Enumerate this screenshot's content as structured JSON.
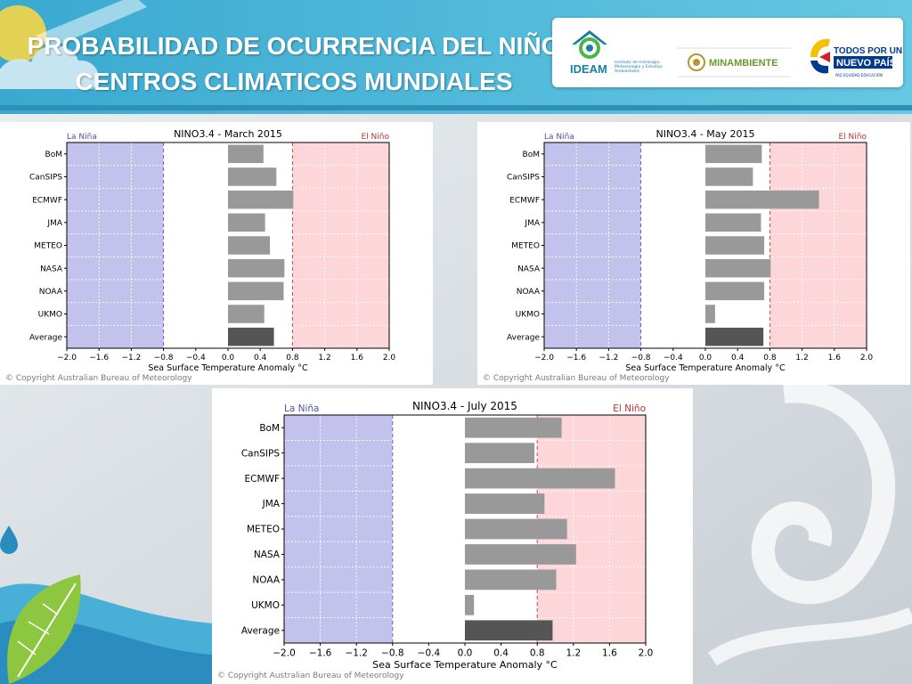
{
  "slide": {
    "title_line1": "PROBABILIDAD DE OCURRENCIA DEL NIÑO",
    "title_line2": "CENTROS CLIMATICOS MUNDIALES"
  },
  "logos": {
    "ideam_name": "IDEAM",
    "ideam_subtitle": "Instituto de Hidrología, Meteorología y Estudios Ambientales",
    "minambiente": "MINAMBIENTE",
    "todos_line1": "TODOS POR UN",
    "todos_line2": "NUEVO PAÍS",
    "todos_motto": "PAZ  EQUIDAD  EDUCACIÓN"
  },
  "colors": {
    "la_nina_fill": "#c2c2ec",
    "el_nino_fill": "#fdd6da",
    "bar": "#999999",
    "average_bar": "#555555",
    "la_nina_text": "#5050a8",
    "el_nino_text": "#c23030",
    "title_bg": "#4bb8d6",
    "accent_green": "#8dc63f"
  },
  "copyright": "© Copyright Australian Bureau of Meteorology",
  "chart_data": [
    {
      "type": "bar",
      "orientation": "horizontal",
      "title": "NINO3.4 - March 2015",
      "xlabel": "Sea Surface Temperature Anomaly °C",
      "ylabel": "",
      "categories": [
        "BoM",
        "CanSIPS",
        "ECMWF",
        "JMA",
        "METEO",
        "NASA",
        "NOAA",
        "UKMO",
        "Average"
      ],
      "values": [
        0.44,
        0.6,
        0.81,
        0.46,
        0.52,
        0.7,
        0.69,
        0.45,
        0.57
      ],
      "xlim": [
        -2.0,
        2.0
      ],
      "xticks": [
        "−2.0",
        "−1.6",
        "−1.2",
        "−0.8",
        "−0.4",
        "0.0",
        "0.4",
        "0.8",
        "1.2",
        "1.6",
        "2.0"
      ],
      "thresholds": [
        -0.8,
        0.8
      ],
      "region_labels": [
        "La Niña",
        "El Niño"
      ],
      "grid": true
    },
    {
      "type": "bar",
      "orientation": "horizontal",
      "title": "NINO3.4 - May 2015",
      "xlabel": "Sea Surface Temperature Anomaly °C",
      "ylabel": "",
      "categories": [
        "BoM",
        "CanSIPS",
        "ECMWF",
        "JMA",
        "METEO",
        "NASA",
        "NOAA",
        "UKMO",
        "Average"
      ],
      "values": [
        0.7,
        0.59,
        1.41,
        0.69,
        0.73,
        0.81,
        0.73,
        0.12,
        0.72
      ],
      "xlim": [
        -2.0,
        2.0
      ],
      "xticks": [
        "−2.0",
        "−1.6",
        "−1.2",
        "−0.8",
        "−0.4",
        "0.0",
        "0.4",
        "0.8",
        "1.2",
        "1.6",
        "2.0"
      ],
      "thresholds": [
        -0.8,
        0.8
      ],
      "region_labels": [
        "La Niña",
        "El Niño"
      ],
      "grid": true
    },
    {
      "type": "bar",
      "orientation": "horizontal",
      "title": "NINO3.4 - July 2015",
      "xlabel": "Sea Surface Temperature Anomaly °C",
      "ylabel": "",
      "categories": [
        "BoM",
        "CanSIPS",
        "ECMWF",
        "JMA",
        "METEO",
        "NASA",
        "NOAA",
        "UKMO",
        "Average"
      ],
      "values": [
        1.07,
        0.77,
        1.66,
        0.88,
        1.13,
        1.23,
        1.01,
        0.1,
        0.97
      ],
      "xlim": [
        -2.0,
        2.0
      ],
      "xticks": [
        "−2.0",
        "−1.6",
        "−1.2",
        "−0.8",
        "−0.4",
        "0.0",
        "0.4",
        "0.8",
        "1.2",
        "1.6",
        "2.0"
      ],
      "thresholds": [
        -0.8,
        0.8
      ],
      "region_labels": [
        "La Niña",
        "El Niño"
      ],
      "grid": true
    }
  ]
}
